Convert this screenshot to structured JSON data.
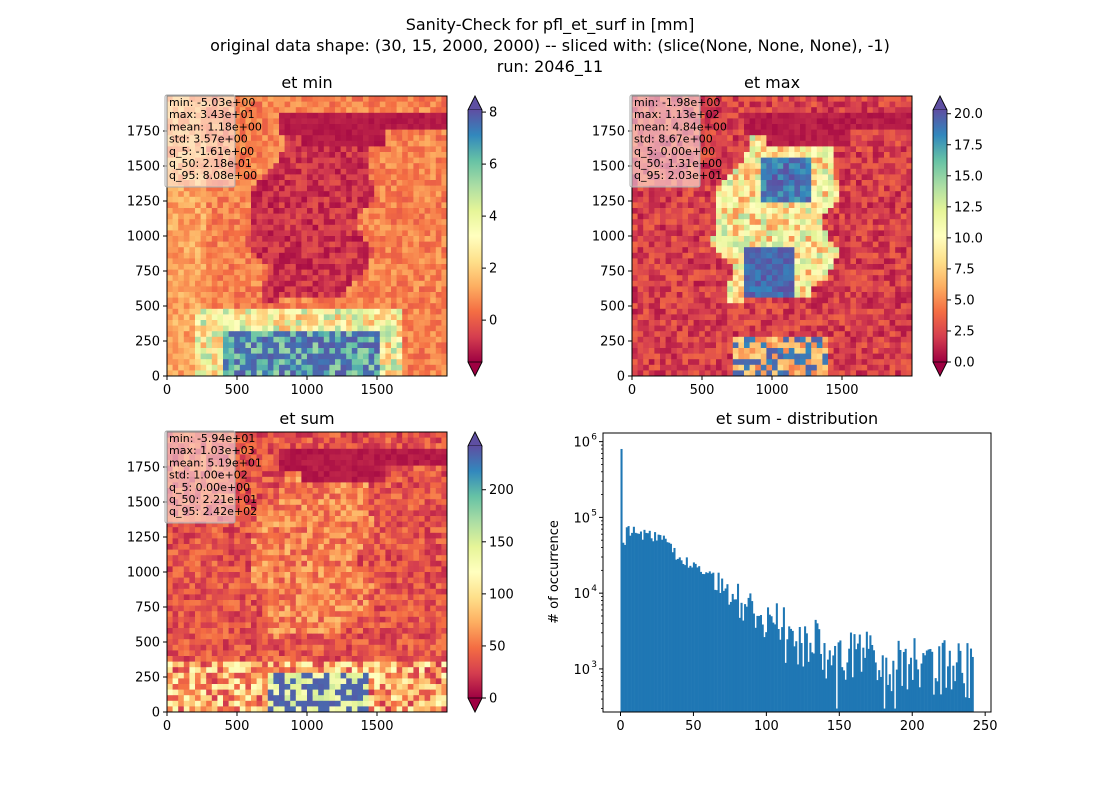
{
  "suptitle": {
    "line1": "Sanity-Check for pfl_et_surf in [mm]",
    "line2": "original data shape: (30, 15, 2000, 2000) -- sliced with: (slice(None, None, None), -1)",
    "line3": "run: 2046_11"
  },
  "colors": {
    "hist_bar": "#1f77b4",
    "spectral": [
      "#9e0142",
      "#d53e4f",
      "#f46d43",
      "#fdae61",
      "#fee08b",
      "#ffffbf",
      "#e6f598",
      "#abdda4",
      "#66c2a5",
      "#3288bd",
      "#5e4fa2"
    ]
  },
  "chart_data": [
    {
      "type": "heatmap",
      "title": "et min",
      "colormap": "Spectral",
      "x_ticks": [
        "0",
        "500",
        "1000",
        "1500"
      ],
      "y_ticks": [
        "0",
        "250",
        "500",
        "750",
        "1000",
        "1250",
        "1500",
        "1750"
      ],
      "xlim": [
        0,
        2000
      ],
      "ylim": [
        0,
        2000
      ],
      "colorbar": {
        "vmin": -1.61,
        "vmax": 8.08,
        "extend": "both",
        "ticks": [
          "8",
          "6",
          "4",
          "2",
          "0"
        ],
        "tick_values": [
          8,
          6,
          4,
          2,
          0
        ]
      },
      "stats": [
        "min: -5.03e+00",
        "max: 3.43e+01",
        "mean: 1.18e+00",
        "std: 3.57e+00",
        "q_5: -1.61e+00",
        "q_50: 2.18e-01",
        "q_95: 8.08e+00"
      ]
    },
    {
      "type": "heatmap",
      "title": "et max",
      "colormap": "Spectral",
      "x_ticks": [
        "0",
        "500",
        "1000",
        "1500"
      ],
      "y_ticks": [
        "0",
        "250",
        "500",
        "750",
        "1000",
        "1250",
        "1500",
        "1750"
      ],
      "xlim": [
        0,
        2000
      ],
      "ylim": [
        0,
        2000
      ],
      "colorbar": {
        "vmin": 0.0,
        "vmax": 20.3,
        "extend": "both",
        "ticks": [
          "20.0",
          "17.5",
          "15.0",
          "12.5",
          "10.0",
          "7.5",
          "5.0",
          "2.5",
          "0.0"
        ],
        "tick_values": [
          20,
          17.5,
          15,
          12.5,
          10,
          7.5,
          5,
          2.5,
          0
        ]
      },
      "stats": [
        "min: -1.98e+00",
        "max: 1.13e+02",
        "mean: 4.84e+00",
        "std: 8.67e+00",
        "q_5: 0.00e+00",
        "q_50: 1.31e+00",
        "q_95: 2.03e+01"
      ]
    },
    {
      "type": "heatmap",
      "title": "et sum",
      "colormap": "Spectral",
      "x_ticks": [
        "0",
        "500",
        "1000",
        "1500"
      ],
      "y_ticks": [
        "0",
        "250",
        "500",
        "750",
        "1000",
        "1250",
        "1500",
        "1750"
      ],
      "xlim": [
        0,
        2000
      ],
      "ylim": [
        0,
        2000
      ],
      "colorbar": {
        "vmin": 0.0,
        "vmax": 242.0,
        "extend": "both",
        "ticks": [
          "200",
          "150",
          "100",
          "50",
          "0"
        ],
        "tick_values": [
          200,
          150,
          100,
          50,
          0
        ]
      },
      "stats": [
        "min: -5.94e+01",
        "max: 1.03e+03",
        "mean: 5.19e+01",
        "std: 1.00e+02",
        "q_5: 0.00e+00",
        "q_50: 2.21e+01",
        "q_95: 2.42e+02"
      ]
    },
    {
      "type": "bar",
      "title": "et sum - distribution",
      "ylabel": "# of occurrence",
      "y_scale": "log",
      "xlim": [
        -12,
        254
      ],
      "ylim": [
        270,
        1300000
      ],
      "x_ticks": [
        0,
        50,
        100,
        150,
        200,
        250
      ],
      "y_ticks": [
        1000,
        10000,
        100000,
        1000000
      ],
      "y_tick_labels": [
        {
          "base": "10",
          "exp": "3"
        },
        {
          "base": "10",
          "exp": "4"
        },
        {
          "base": "10",
          "exp": "5"
        },
        {
          "base": "10",
          "exp": "6"
        }
      ],
      "bin_edges_range": [
        0,
        242
      ],
      "n_bins": 200,
      "samples": [
        {
          "x": 0.6,
          "y": 800000
        },
        {
          "x": 2,
          "y": 30000
        },
        {
          "x": 3.5,
          "y": 55000
        },
        {
          "x": 5,
          "y": 70000
        },
        {
          "x": 10,
          "y": 62000
        },
        {
          "x": 20,
          "y": 60000
        },
        {
          "x": 30,
          "y": 48000
        },
        {
          "x": 40,
          "y": 30000
        },
        {
          "x": 50,
          "y": 22000
        },
        {
          "x": 60,
          "y": 17000
        },
        {
          "x": 70,
          "y": 12000
        },
        {
          "x": 80,
          "y": 8000
        },
        {
          "x": 90,
          "y": 6000
        },
        {
          "x": 100,
          "y": 4000
        },
        {
          "x": 110,
          "y": 3200
        },
        {
          "x": 120,
          "y": 2600
        },
        {
          "x": 130,
          "y": 2200
        },
        {
          "x": 140,
          "y": 1900
        },
        {
          "x": 150,
          "y": 1700
        },
        {
          "x": 160,
          "y": 1500
        },
        {
          "x": 170,
          "y": 1400
        },
        {
          "x": 180,
          "y": 1300
        },
        {
          "x": 190,
          "y": 1250
        },
        {
          "x": 200,
          "y": 1200
        },
        {
          "x": 210,
          "y": 1100
        },
        {
          "x": 220,
          "y": 1100
        },
        {
          "x": 230,
          "y": 1050
        },
        {
          "x": 242,
          "y": 1000
        }
      ]
    }
  ]
}
